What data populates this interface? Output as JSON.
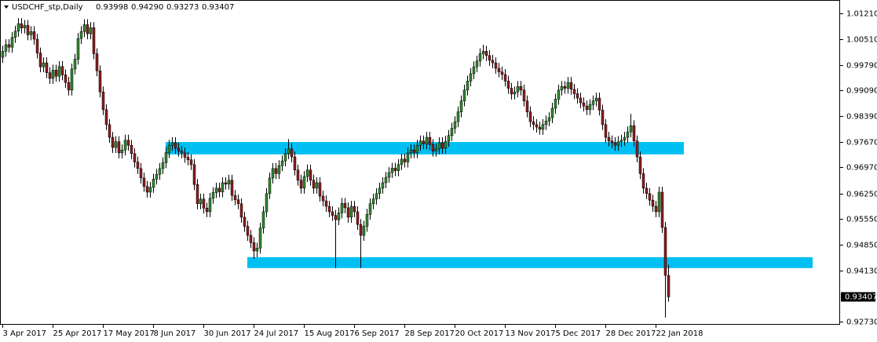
{
  "chart_data": {
    "type": "candlestick",
    "title": "USDCHF_stp,Daily",
    "header_labels": [
      "0.93998",
      "0.94290",
      "0.93273",
      "0.93407"
    ],
    "color_up": "#2f8a2f",
    "color_down": "#8b1e1e",
    "wick_color": "#000000",
    "zone_color": "#00bff3",
    "ylim": [
      0.9264,
      1.0158
    ],
    "yticks": [
      {
        "value": 1.0121,
        "label": "1.01210"
      },
      {
        "value": 1.0051,
        "label": "1.00510"
      },
      {
        "value": 0.9979,
        "label": "0.99790"
      },
      {
        "value": 0.9909,
        "label": "0.99090"
      },
      {
        "value": 0.9839,
        "label": "0.98390"
      },
      {
        "value": 0.9767,
        "label": "0.97670"
      },
      {
        "value": 0.9697,
        "label": "0.96970"
      },
      {
        "value": 0.9625,
        "label": "0.96250"
      },
      {
        "value": 0.9555,
        "label": "0.95550"
      },
      {
        "value": 0.9485,
        "label": "0.94850"
      },
      {
        "value": 0.9413,
        "label": "0.94130"
      },
      {
        "value": 0.9273,
        "label": "0.92730"
      }
    ],
    "zones": [
      {
        "low": 0.9733,
        "high": 0.9767,
        "start": 52,
        "end": 217
      },
      {
        "low": 0.942,
        "high": 0.945,
        "start": 78,
        "end": 258
      }
    ],
    "categories": [
      "3 Apr 2017",
      null,
      null,
      null,
      null,
      null,
      null,
      null,
      null,
      null,
      null,
      null,
      null,
      null,
      null,
      null,
      "25 Apr 2017",
      null,
      null,
      null,
      null,
      null,
      null,
      null,
      null,
      null,
      null,
      null,
      null,
      null,
      null,
      null,
      "17 May 2017",
      null,
      null,
      null,
      null,
      null,
      null,
      null,
      null,
      null,
      null,
      null,
      null,
      null,
      null,
      null,
      "8 Jun 2017",
      null,
      null,
      null,
      null,
      null,
      null,
      null,
      null,
      null,
      null,
      null,
      null,
      null,
      null,
      null,
      "30 Jun 2017",
      null,
      null,
      null,
      null,
      null,
      null,
      null,
      null,
      null,
      null,
      null,
      null,
      null,
      null,
      null,
      "24 Jul 2017",
      null,
      null,
      null,
      null,
      null,
      null,
      null,
      null,
      null,
      null,
      null,
      null,
      null,
      null,
      null,
      "15 Aug 2017",
      null,
      null,
      null,
      null,
      null,
      null,
      null,
      null,
      null,
      null,
      null,
      null,
      null,
      null,
      null,
      "6 Sep 2017",
      null,
      null,
      null,
      null,
      null,
      null,
      null,
      null,
      null,
      null,
      null,
      null,
      null,
      null,
      null,
      "28 Sep 2017",
      null,
      null,
      null,
      null,
      null,
      null,
      null,
      null,
      null,
      null,
      null,
      null,
      null,
      null,
      null,
      "20 Oct 2017",
      null,
      null,
      null,
      null,
      null,
      null,
      null,
      null,
      null,
      null,
      null,
      null,
      null,
      null,
      null,
      "13 Nov 2017",
      null,
      null,
      null,
      null,
      null,
      null,
      null,
      null,
      null,
      null,
      null,
      null,
      null,
      null,
      null,
      "5 Dec 2017",
      null,
      null,
      null,
      null,
      null,
      null,
      null,
      null,
      null,
      null,
      null,
      null,
      null,
      null,
      null,
      "28 Dec 2017",
      null,
      null,
      null,
      null,
      null,
      null,
      null,
      null,
      null,
      null,
      null,
      null,
      null,
      null,
      null,
      "22 Jan 2018",
      null,
      null,
      null,
      null
    ],
    "open": [
      1.0,
      1.0017,
      1.0035,
      1.0028,
      1.0055,
      1.0072,
      1.0093,
      1.0081,
      1.0088,
      1.0062,
      1.0071,
      1.005,
      1.0012,
      0.9974,
      0.9985,
      0.9958,
      0.9942,
      0.9965,
      0.9948,
      0.9975,
      0.9952,
      0.9931,
      0.991,
      0.9968,
      0.9995,
      1.0052,
      1.0071,
      1.009,
      1.0065,
      1.0082,
      1.001,
      0.9963,
      0.9905,
      0.9856,
      0.9815,
      0.978,
      0.9752,
      0.9768,
      0.9737,
      0.9745,
      0.9772,
      0.9758,
      0.9735,
      0.9712,
      0.9694,
      0.9668,
      0.9645,
      0.9629,
      0.9642,
      0.9665,
      0.9678,
      0.9694,
      0.971,
      0.9738,
      0.9758,
      0.9765,
      0.975,
      0.9742,
      0.9737,
      0.9725,
      0.9718,
      0.9705,
      0.965,
      0.9597,
      0.961,
      0.9585,
      0.9575,
      0.9612,
      0.9628,
      0.964,
      0.963,
      0.9655,
      0.9651,
      0.9662,
      0.962,
      0.9608,
      0.9597,
      0.956,
      0.9535,
      0.951,
      0.949,
      0.9467,
      0.9475,
      0.953,
      0.9575,
      0.9625,
      0.9668,
      0.9694,
      0.968,
      0.9702,
      0.9715,
      0.9735,
      0.9748,
      0.9726,
      0.969,
      0.9662,
      0.964,
      0.9672,
      0.969,
      0.9662,
      0.964,
      0.9655,
      0.9618,
      0.9605,
      0.959,
      0.9575,
      0.9565,
      0.9553,
      0.9572,
      0.9598,
      0.9586,
      0.956,
      0.959,
      0.9575,
      0.954,
      0.951,
      0.9535,
      0.9568,
      0.9597,
      0.961,
      0.9625,
      0.964,
      0.9655,
      0.967,
      0.9683,
      0.9695,
      0.9688,
      0.9705,
      0.972,
      0.9712,
      0.9737,
      0.9745,
      0.9738,
      0.9758,
      0.977,
      0.9762,
      0.978,
      0.976,
      0.9742,
      0.9748,
      0.9765,
      0.975,
      0.9769,
      0.9785,
      0.9805,
      0.9823,
      0.985,
      0.988,
      0.991,
      0.9935,
      0.9955,
      0.9974,
      0.999,
      1.001,
      1.0017,
      1.0005,
      0.9992,
      0.9985,
      0.997,
      0.996,
      0.9953,
      0.9935,
      0.9915,
      0.9899,
      0.9905,
      0.992,
      0.991,
      0.988,
      0.985,
      0.9823,
      0.9815,
      0.9808,
      0.9802,
      0.9815,
      0.9825,
      0.9834,
      0.986,
      0.9885,
      0.991,
      0.992,
      0.9915,
      0.9931,
      0.9912,
      0.99,
      0.9888,
      0.9875,
      0.9866,
      0.9856,
      0.987,
      0.988,
      0.9888,
      0.9855,
      0.9815,
      0.978,
      0.977,
      0.9765,
      0.9758,
      0.9768,
      0.9772,
      0.978,
      0.9795,
      0.9812,
      0.977,
      0.9726,
      0.968,
      0.964,
      0.9625,
      0.9607,
      0.959,
      0.9575,
      0.9629,
      0.9532,
      0.93998
    ],
    "high": [
      1.0032,
      1.005,
      1.005,
      1.007,
      1.0087,
      1.0108,
      1.0108,
      1.0103,
      1.0103,
      1.0086,
      1.0086,
      1.0065,
      1.0027,
      1.0,
      1.0,
      0.9973,
      0.998,
      0.998,
      0.999,
      0.999,
      0.9967,
      0.9946,
      0.9983,
      1.001,
      1.0067,
      1.0086,
      1.0105,
      1.0105,
      1.0097,
      1.0097,
      1.0025,
      0.9978,
      0.992,
      0.9871,
      0.983,
      0.9795,
      0.9783,
      0.9783,
      0.976,
      0.9787,
      0.9787,
      0.9773,
      0.975,
      0.9727,
      0.9709,
      0.9683,
      0.966,
      0.9657,
      0.968,
      0.9693,
      0.9709,
      0.9725,
      0.9753,
      0.9773,
      0.978,
      0.978,
      0.9765,
      0.9757,
      0.9752,
      0.974,
      0.9733,
      0.972,
      0.9665,
      0.9625,
      0.9625,
      0.96,
      0.9627,
      0.9643,
      0.9655,
      0.9655,
      0.967,
      0.967,
      0.9677,
      0.9677,
      0.9635,
      0.9623,
      0.9612,
      0.9575,
      0.955,
      0.9525,
      0.9505,
      0.949,
      0.9545,
      0.959,
      0.964,
      0.9683,
      0.9709,
      0.9709,
      0.9717,
      0.973,
      0.975,
      0.9775,
      0.9763,
      0.9741,
      0.9705,
      0.9677,
      0.9687,
      0.9705,
      0.9705,
      0.9677,
      0.967,
      0.967,
      0.9633,
      0.962,
      0.9605,
      0.959,
      0.958,
      0.9587,
      0.9613,
      0.9613,
      0.9601,
      0.9605,
      0.9605,
      0.959,
      0.9555,
      0.955,
      0.9583,
      0.9612,
      0.9625,
      0.964,
      0.9655,
      0.967,
      0.9685,
      0.9698,
      0.971,
      0.971,
      0.972,
      0.9735,
      0.9735,
      0.9752,
      0.976,
      0.976,
      0.9773,
      0.9785,
      0.9785,
      0.9795,
      0.9795,
      0.9775,
      0.9763,
      0.978,
      0.978,
      0.9784,
      0.98,
      0.982,
      0.9838,
      0.9865,
      0.9895,
      0.9925,
      0.995,
      0.997,
      0.9989,
      1.0005,
      1.0025,
      1.0035,
      1.0032,
      1.002,
      1.0007,
      1.0,
      0.9985,
      0.9975,
      0.9968,
      0.995,
      0.993,
      0.992,
      0.9935,
      0.9935,
      0.9925,
      0.9895,
      0.9865,
      0.9838,
      0.983,
      0.9823,
      0.983,
      0.984,
      0.9849,
      0.9875,
      0.99,
      0.9925,
      0.9935,
      0.9935,
      0.9946,
      0.9946,
      0.9927,
      0.9915,
      0.9903,
      0.989,
      0.9881,
      0.9885,
      0.9895,
      0.9903,
      0.9903,
      0.987,
      0.983,
      0.9795,
      0.9785,
      0.978,
      0.9783,
      0.9787,
      0.9795,
      0.981,
      0.9845,
      0.9827,
      0.9785,
      0.9741,
      0.9695,
      0.9655,
      0.964,
      0.9622,
      0.9605,
      0.9644,
      0.9644,
      0.9547,
      0.9429
    ],
    "low": [
      0.9985,
      1.0002,
      1.0013,
      1.0013,
      1.004,
      1.0057,
      1.0066,
      1.0066,
      1.0047,
      1.0047,
      1.0035,
      0.9997,
      0.9959,
      0.9959,
      0.9943,
      0.9927,
      0.9927,
      0.9933,
      0.9933,
      0.9937,
      0.9916,
      0.9895,
      0.9895,
      0.9953,
      0.998,
      1.0037,
      1.0056,
      1.005,
      1.005,
      0.9995,
      0.9948,
      0.989,
      0.9841,
      0.98,
      0.9765,
      0.9737,
      0.9737,
      0.9722,
      0.9722,
      0.973,
      0.9743,
      0.972,
      0.9697,
      0.9679,
      0.9653,
      0.963,
      0.9614,
      0.9614,
      0.9627,
      0.965,
      0.9663,
      0.9679,
      0.9695,
      0.9723,
      0.9743,
      0.9735,
      0.9727,
      0.9722,
      0.971,
      0.9703,
      0.969,
      0.9635,
      0.9582,
      0.9582,
      0.957,
      0.956,
      0.956,
      0.9597,
      0.9613,
      0.9615,
      0.9615,
      0.9636,
      0.9636,
      0.9605,
      0.9593,
      0.9582,
      0.9545,
      0.952,
      0.9495,
      0.9475,
      0.9445,
      0.945,
      0.946,
      0.9515,
      0.956,
      0.961,
      0.9653,
      0.9665,
      0.9665,
      0.9687,
      0.97,
      0.972,
      0.9711,
      0.9675,
      0.9647,
      0.9625,
      0.9625,
      0.9657,
      0.9647,
      0.9625,
      0.9625,
      0.9603,
      0.959,
      0.9575,
      0.956,
      0.955,
      0.942,
      0.9538,
      0.9557,
      0.9571,
      0.9545,
      0.9545,
      0.956,
      0.9525,
      0.942,
      0.9495,
      0.952,
      0.9553,
      0.9582,
      0.9595,
      0.961,
      0.9625,
      0.964,
      0.9655,
      0.9668,
      0.9673,
      0.9673,
      0.969,
      0.9697,
      0.9697,
      0.9722,
      0.9723,
      0.9723,
      0.9743,
      0.9747,
      0.9747,
      0.9745,
      0.9727,
      0.9727,
      0.9733,
      0.9735,
      0.9735,
      0.9754,
      0.977,
      0.979,
      0.9808,
      0.9835,
      0.9865,
      0.9895,
      0.992,
      0.994,
      0.9959,
      0.9975,
      0.9995,
      0.999,
      0.9977,
      0.997,
      0.9955,
      0.9945,
      0.9938,
      0.992,
      0.99,
      0.9884,
      0.9884,
      0.989,
      0.9895,
      0.9865,
      0.9835,
      0.9808,
      0.98,
      0.9793,
      0.9787,
      0.9787,
      0.98,
      0.981,
      0.9819,
      0.9845,
      0.987,
      0.9895,
      0.99,
      0.99,
      0.9897,
      0.9885,
      0.9873,
      0.986,
      0.9851,
      0.9841,
      0.9841,
      0.9855,
      0.9865,
      0.984,
      0.98,
      0.9765,
      0.9755,
      0.975,
      0.9743,
      0.9743,
      0.9753,
      0.9757,
      0.9765,
      0.978,
      0.9755,
      0.9711,
      0.9665,
      0.9625,
      0.961,
      0.9592,
      0.9575,
      0.956,
      0.956,
      0.9517,
      0.9284,
      0.93273
    ],
    "close": [
      1.0017,
      1.0035,
      1.0028,
      1.0055,
      1.0072,
      1.0093,
      1.0081,
      1.0088,
      1.0062,
      1.0071,
      1.005,
      1.0012,
      0.9974,
      0.9985,
      0.9958,
      0.9942,
      0.9965,
      0.9948,
      0.9975,
      0.9952,
      0.9931,
      0.991,
      0.9968,
      0.9995,
      1.0052,
      1.0071,
      1.009,
      1.0065,
      1.0082,
      1.001,
      0.9963,
      0.9905,
      0.9856,
      0.9815,
      0.978,
      0.9752,
      0.9768,
      0.9737,
      0.9745,
      0.9772,
      0.9758,
      0.9735,
      0.9712,
      0.9694,
      0.9668,
      0.9645,
      0.9629,
      0.9642,
      0.9665,
      0.9678,
      0.9694,
      0.971,
      0.9738,
      0.9758,
      0.9765,
      0.975,
      0.9742,
      0.9737,
      0.9725,
      0.9718,
      0.9705,
      0.965,
      0.9597,
      0.961,
      0.9585,
      0.9575,
      0.9612,
      0.9628,
      0.964,
      0.963,
      0.9655,
      0.9651,
      0.9662,
      0.962,
      0.9608,
      0.9597,
      0.956,
      0.9535,
      0.951,
      0.949,
      0.9467,
      0.9475,
      0.953,
      0.9575,
      0.9625,
      0.9668,
      0.9694,
      0.968,
      0.9702,
      0.9715,
      0.9735,
      0.9748,
      0.9726,
      0.969,
      0.9662,
      0.964,
      0.9672,
      0.969,
      0.9662,
      0.964,
      0.9655,
      0.9618,
      0.9605,
      0.959,
      0.9575,
      0.9565,
      0.9553,
      0.9572,
      0.9598,
      0.9586,
      0.956,
      0.959,
      0.9575,
      0.954,
      0.951,
      0.9535,
      0.9568,
      0.9597,
      0.961,
      0.9625,
      0.964,
      0.9655,
      0.967,
      0.9683,
      0.9695,
      0.9688,
      0.9705,
      0.972,
      0.9712,
      0.9737,
      0.9745,
      0.9738,
      0.9758,
      0.977,
      0.9762,
      0.978,
      0.976,
      0.9742,
      0.9748,
      0.9765,
      0.975,
      0.9769,
      0.9785,
      0.9805,
      0.9823,
      0.985,
      0.988,
      0.991,
      0.9935,
      0.9955,
      0.9974,
      0.999,
      1.001,
      1.0017,
      1.0005,
      0.9992,
      0.9985,
      0.997,
      0.996,
      0.9953,
      0.9935,
      0.9915,
      0.9899,
      0.9905,
      0.992,
      0.991,
      0.988,
      0.985,
      0.9823,
      0.9815,
      0.9808,
      0.9802,
      0.9815,
      0.9825,
      0.9834,
      0.986,
      0.9885,
      0.991,
      0.992,
      0.9915,
      0.9931,
      0.9912,
      0.99,
      0.9888,
      0.9875,
      0.9866,
      0.9856,
      0.987,
      0.988,
      0.9888,
      0.9855,
      0.9815,
      0.978,
      0.977,
      0.9765,
      0.9758,
      0.9768,
      0.9772,
      0.978,
      0.9795,
      0.9812,
      0.977,
      0.9726,
      0.968,
      0.964,
      0.9625,
      0.9607,
      0.959,
      0.9575,
      0.9629,
      0.9532,
      0.93998,
      0.93407
    ]
  }
}
